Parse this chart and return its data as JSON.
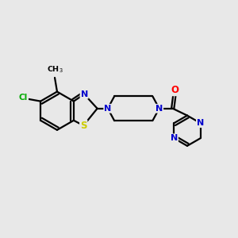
{
  "bg_color": "#e8e8e8",
  "bond_color": "#000000",
  "bond_width": 1.6,
  "atom_colors": {
    "N": "#0000cc",
    "S": "#cccc00",
    "Cl": "#00aa00",
    "O": "#ff0000",
    "C": "#000000"
  },
  "figsize": [
    3.0,
    3.0
  ],
  "dpi": 100,
  "xlim": [
    0,
    10
  ],
  "ylim": [
    0,
    10
  ]
}
